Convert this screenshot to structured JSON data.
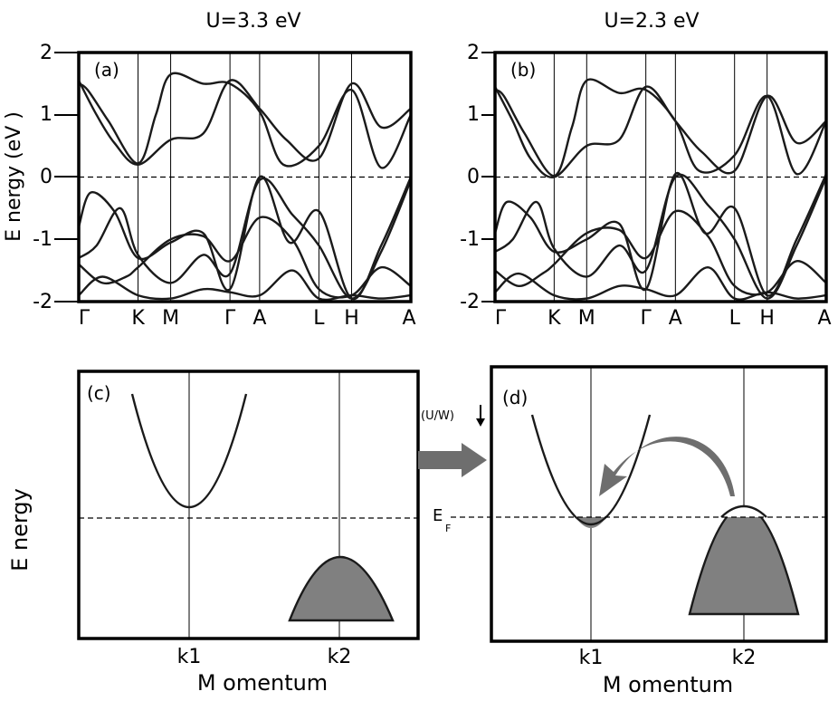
{
  "panel_top_left": {
    "title": "U=3.3 eV",
    "label": "(a)"
  },
  "panel_top_right": {
    "title": "U=2.3 eV",
    "label": "(b)"
  },
  "panel_bottom_left": {
    "label": "(c)"
  },
  "panel_bottom_right": {
    "label": "(d)"
  },
  "arrow_label": "(U/W)",
  "fermi_label": "E",
  "fermi_subscript": "F",
  "bottom_ylabel": "E nergy",
  "bottom_xlabel": "M omentum",
  "colors": {
    "line": "#1a1a1a",
    "fill": "#808080",
    "arrow": "#6e6e6e"
  },
  "chart_data": [
    {
      "type": "line",
      "panel": "(a)",
      "title": "U=3.3 eV",
      "ylabel": "E nergy (eV )",
      "ylim": [
        -2,
        2
      ],
      "yticks": [
        "2",
        "1",
        "0",
        "-1",
        "-2"
      ],
      "x_ticks": [
        "Γ",
        "K",
        "M",
        "Γ",
        "A",
        "L",
        "H",
        "A"
      ],
      "x_tick_positions": [
        0,
        1,
        1.55,
        2.55,
        3.05,
        4.05,
        4.6,
        5.6
      ],
      "fermi_level": 0,
      "series": [
        {
          "x": [
            0,
            0.3,
            0.6,
            1.0,
            1.55,
            2.1,
            2.55,
            3.05,
            3.5,
            4.05,
            4.6,
            5.1,
            5.6
          ],
          "values": [
            1.55,
            1.0,
            0.55,
            0.2,
            0.6,
            0.7,
            1.55,
            1.1,
            0.6,
            0.3,
            1.5,
            0.8,
            1.1
          ]
        },
        {
          "x": [
            0,
            0.15,
            0.5,
            1.0,
            1.3,
            1.55,
            2.1,
            2.55,
            3.05,
            3.45,
            4.05,
            4.6,
            5.1,
            5.6
          ],
          "values": [
            1.5,
            1.4,
            0.9,
            0.22,
            1.0,
            1.65,
            1.5,
            1.5,
            1.05,
            0.2,
            0.5,
            1.4,
            0.15,
            1.0
          ]
        },
        {
          "x": [
            0,
            0.2,
            0.6,
            1.0,
            1.55,
            2.1,
            2.55,
            3.05,
            3.55,
            4.05,
            4.6,
            5.1,
            5.6
          ],
          "values": [
            -0.8,
            -0.25,
            -0.55,
            -1.3,
            -1.05,
            -0.9,
            -1.8,
            0.0,
            -1.05,
            -0.55,
            -1.95,
            -1.1,
            0.0
          ]
        },
        {
          "x": [
            0,
            0.3,
            0.7,
            1.0,
            1.55,
            2.1,
            2.55,
            3.05,
            3.6,
            4.05,
            4.6,
            5.1,
            5.6
          ],
          "values": [
            -1.3,
            -1.1,
            -0.5,
            -1.25,
            -1.7,
            -1.25,
            -1.55,
            -0.05,
            -0.6,
            -1.1,
            -1.95,
            -1.2,
            -0.05
          ]
        },
        {
          "x": [
            0,
            0.4,
            0.8,
            1.0,
            1.55,
            2.1,
            2.55,
            3.05,
            3.6,
            4.05,
            4.6,
            5.1,
            5.6
          ],
          "values": [
            -1.4,
            -1.7,
            -1.6,
            -1.45,
            -1.0,
            -0.95,
            -1.35,
            -0.65,
            -1.0,
            -1.8,
            -1.9,
            -1.45,
            -1.75
          ]
        },
        {
          "x": [
            0,
            0.4,
            1.0,
            1.55,
            2.1,
            2.55,
            3.05,
            3.6,
            4.05,
            4.6,
            5.1,
            5.6
          ],
          "values": [
            -1.9,
            -1.6,
            -1.9,
            -1.95,
            -1.8,
            -1.85,
            -1.9,
            -1.5,
            -1.95,
            -1.9,
            -1.95,
            -1.9
          ]
        }
      ]
    },
    {
      "type": "line",
      "panel": "(b)",
      "title": "U=2.3 eV",
      "ylim": [
        -2,
        2
      ],
      "yticks": [
        "2",
        "1",
        "0",
        "-1",
        "-2"
      ],
      "x_ticks": [
        "Γ",
        "K",
        "M",
        "Γ",
        "A",
        "L",
        "H",
        "A"
      ],
      "x_tick_positions": [
        0,
        1,
        1.55,
        2.55,
        3.05,
        4.05,
        4.6,
        5.6
      ],
      "fermi_level": 0,
      "series": [
        {
          "x": [
            0,
            0.3,
            0.6,
            1.0,
            1.55,
            2.1,
            2.55,
            3.05,
            3.5,
            4.05,
            4.6,
            5.1,
            5.6
          ],
          "values": [
            1.45,
            0.9,
            0.3,
            0.0,
            0.5,
            0.6,
            1.45,
            0.9,
            0.4,
            0.1,
            1.3,
            0.55,
            0.9
          ]
        },
        {
          "x": [
            0,
            0.15,
            0.5,
            1.0,
            1.3,
            1.55,
            2.1,
            2.55,
            3.05,
            3.45,
            4.05,
            4.6,
            5.1,
            5.6
          ],
          "values": [
            1.4,
            1.3,
            0.7,
            0.02,
            0.8,
            1.55,
            1.35,
            1.4,
            0.9,
            0.1,
            0.35,
            1.3,
            0.05,
            0.9
          ]
        },
        {
          "x": [
            0,
            0.2,
            0.6,
            1.0,
            1.55,
            2.1,
            2.55,
            3.05,
            3.55,
            4.05,
            4.6,
            5.1,
            5.6
          ],
          "values": [
            -0.9,
            -0.4,
            -0.65,
            -1.2,
            -1.0,
            -0.75,
            -1.8,
            0.05,
            -0.9,
            -0.5,
            -1.9,
            -1.0,
            0.05
          ]
        },
        {
          "x": [
            0,
            0.3,
            0.7,
            1.0,
            1.55,
            2.1,
            2.55,
            3.05,
            3.6,
            4.05,
            4.6,
            5.1,
            5.6
          ],
          "values": [
            -1.2,
            -1.0,
            -0.4,
            -1.15,
            -1.6,
            -1.1,
            -1.5,
            0.0,
            -0.45,
            -1.0,
            -1.95,
            -1.1,
            0.0
          ]
        },
        {
          "x": [
            0,
            0.4,
            0.8,
            1.0,
            1.55,
            2.1,
            2.55,
            3.05,
            3.6,
            4.05,
            4.6,
            5.1,
            5.6
          ],
          "values": [
            -1.5,
            -1.75,
            -1.55,
            -1.4,
            -0.9,
            -0.85,
            -1.3,
            -0.55,
            -0.95,
            -1.75,
            -1.85,
            -1.35,
            -1.7
          ]
        },
        {
          "x": [
            0,
            0.4,
            1.0,
            1.55,
            2.1,
            2.55,
            3.05,
            3.6,
            4.05,
            4.6,
            5.1,
            5.6
          ],
          "values": [
            -1.85,
            -1.55,
            -1.9,
            -1.95,
            -1.75,
            -1.8,
            -1.9,
            -1.45,
            -1.95,
            -1.85,
            -1.95,
            -1.9
          ]
        }
      ]
    },
    {
      "type": "line",
      "panel": "(c)",
      "ylabel": "E nergy",
      "xlabel": "M omentum",
      "x_ticks": [
        "k1",
        "k2"
      ],
      "series": [
        {
          "name": "conduction",
          "shape": "parabola-up",
          "center": "k1",
          "minimum_relative_to_EF": 0.3
        },
        {
          "name": "valence",
          "shape": "parabola-down",
          "center": "k2",
          "maximum_relative_to_EF": -0.2,
          "filled": true
        }
      ]
    },
    {
      "type": "line",
      "panel": "(d)",
      "xlabel": "M omentum",
      "x_ticks": [
        "k1",
        "k2"
      ],
      "series": [
        {
          "name": "conduction",
          "shape": "parabola-up",
          "center": "k1",
          "minimum_relative_to_EF": -0.2,
          "filled_below_EF": true
        },
        {
          "name": "valence",
          "shape": "parabola-down",
          "center": "k2",
          "maximum_relative_to_EF": 0.15,
          "filled_below_EF": true
        }
      ]
    }
  ]
}
